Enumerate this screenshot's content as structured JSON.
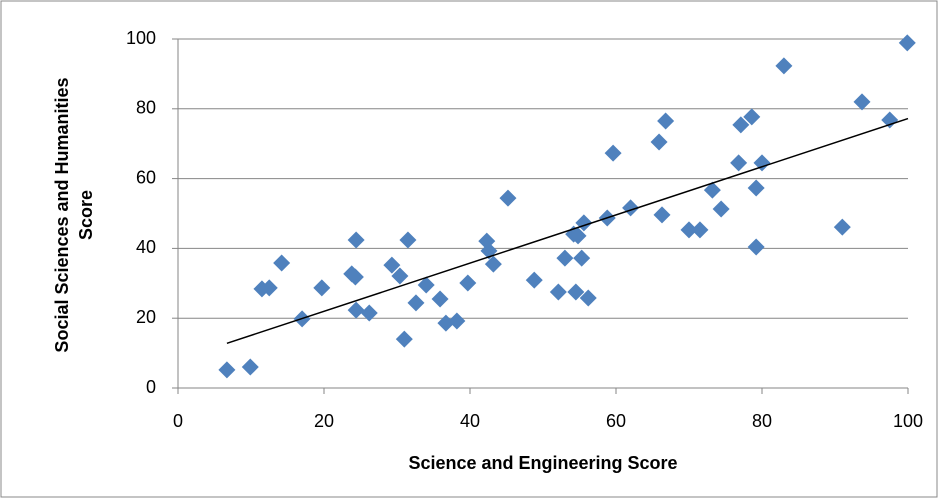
{
  "chart_data": {
    "type": "scatter",
    "x_label": "Science and Engineering Score",
    "y_label": "Social Sciences and Humanities Score",
    "x": [
      6.7,
      9.9,
      11.5,
      12.5,
      14.2,
      17,
      19.7,
      23.8,
      24.3,
      24.4,
      24.4,
      26.2,
      29.3,
      30.4,
      31,
      31.5,
      32.6,
      34,
      35.9,
      36.7,
      38.2,
      39.7,
      42.3,
      42.6,
      43.2,
      45.2,
      48.8,
      52.1,
      53,
      54.2,
      54.5,
      54.8,
      55.3,
      55.6,
      56.2,
      58.8,
      59.6,
      62,
      65.9,
      66.3,
      66.8,
      70,
      71.5,
      73.2,
      74.4,
      76.8,
      77.1,
      78.6,
      79.2,
      79.2,
      80,
      83,
      91,
      93.7,
      97.5,
      99.9
    ],
    "series": [
      {
        "color": "#4f81bd",
        "values": [
          5.2,
          6,
          28.4,
          28.7,
          35.8,
          19.8,
          28.7,
          32.7,
          31.8,
          42.4,
          22.3,
          21.5,
          35.2,
          32.1,
          14,
          42.4,
          24.4,
          29.5,
          25.5,
          18.6,
          19.2,
          30.1,
          42.1,
          39.3,
          35.5,
          54.4,
          30.9,
          27.5,
          37.2,
          44.1,
          27.5,
          43.6,
          37.2,
          47.3,
          25.8,
          48.7,
          67.3,
          51.6,
          70.5,
          49.6,
          76.5,
          45.3,
          45.3,
          56.7,
          51.3,
          64.5,
          75.4,
          77.7,
          57.3,
          40.4,
          64.5,
          92.3,
          46.1,
          82,
          76.8,
          98.9
        ]
      }
    ],
    "trendline": {
      "color": "#000000",
      "x": [
        6.7,
        100
      ],
      "y": [
        12.8,
        77.2
      ]
    },
    "xlim": [
      0,
      100
    ],
    "xticks": [
      0,
      20,
      40,
      60,
      80,
      100
    ],
    "ylim": [
      0,
      100
    ],
    "yticks": [
      0,
      20,
      40,
      60,
      80,
      100
    ],
    "grid": true
  }
}
